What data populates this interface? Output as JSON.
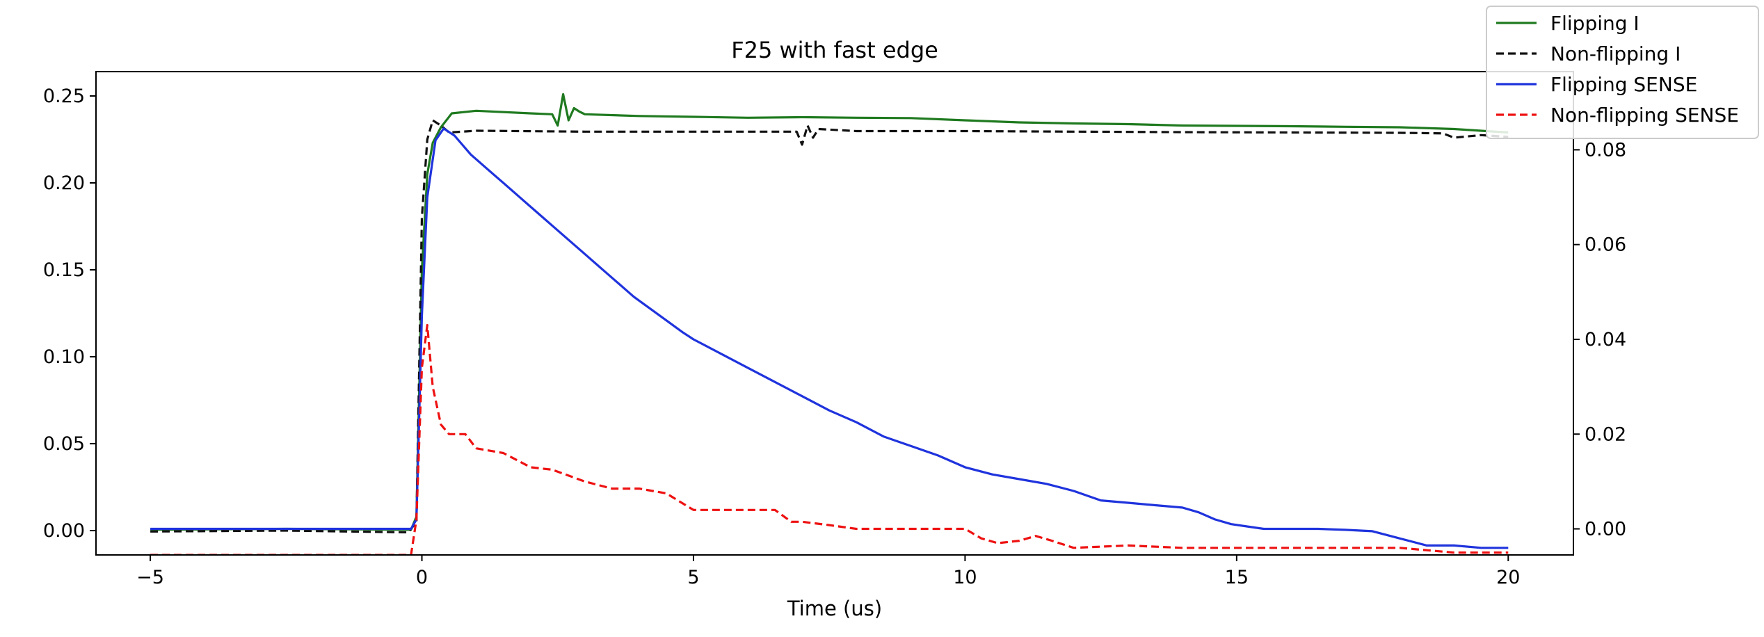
{
  "chart_data": {
    "type": "line",
    "title": "F25 with fast edge",
    "xlabel": "Time (us)",
    "ylabel": "",
    "ylabel_right": "",
    "xlim": [
      -6.0,
      21.2
    ],
    "ylim_left": [
      -0.014,
      0.264
    ],
    "ylim_right": [
      -0.0055,
      0.0965
    ],
    "xticks": [
      -5,
      0,
      5,
      10,
      15,
      20
    ],
    "xtick_labels": [
      "−5",
      "0",
      "5",
      "10",
      "15",
      "20"
    ],
    "yticks_left": [
      0.0,
      0.05,
      0.1,
      0.15,
      0.2,
      0.25
    ],
    "ytick_labels_left": [
      "0.00",
      "0.05",
      "0.10",
      "0.15",
      "0.20",
      "0.25"
    ],
    "yticks_right": [
      0.0,
      0.02,
      0.04,
      0.06,
      0.08
    ],
    "ytick_labels_right": [
      "0.00",
      "0.02",
      "0.04",
      "0.06",
      "0.08"
    ],
    "grid": false,
    "legend_position": "top-right",
    "series": [
      {
        "name": "Flipping I",
        "axis": "left",
        "color": "#1f7a1f",
        "dash": "solid",
        "x": [
          -5,
          -2.5,
          -0.2,
          -0.1,
          0.0,
          0.1,
          0.2,
          0.35,
          0.55,
          1.0,
          2.0,
          2.4,
          2.5,
          2.6,
          2.7,
          2.8,
          2.9,
          3.0,
          4.0,
          5.0,
          6.0,
          7.0,
          8.0,
          9.0,
          10.0,
          11.0,
          12.0,
          13.0,
          14.0,
          15.0,
          16.0,
          17.0,
          18.0,
          19.0,
          20.0
        ],
        "y": [
          0.0005,
          0.001,
          0.0005,
          0.008,
          0.15,
          0.205,
          0.223,
          0.232,
          0.24,
          0.2415,
          0.24,
          0.2395,
          0.233,
          0.251,
          0.236,
          0.243,
          0.241,
          0.2395,
          0.2385,
          0.238,
          0.2375,
          0.2378,
          0.2375,
          0.2373,
          0.236,
          0.2348,
          0.2342,
          0.2338,
          0.233,
          0.2328,
          0.2326,
          0.2323,
          0.232,
          0.231,
          0.229
        ]
      },
      {
        "name": "Non-flipping I",
        "axis": "left",
        "color": "#111111",
        "dash": "dashed",
        "x": [
          -5,
          -2.5,
          -0.25,
          -0.1,
          0.0,
          0.1,
          0.2,
          0.35,
          0.5,
          1.0,
          3.0,
          5.0,
          6.9,
          7.0,
          7.1,
          7.2,
          7.3,
          8.0,
          10.0,
          12.0,
          14.0,
          16.0,
          18.0,
          18.8,
          19.0,
          19.5,
          20.0
        ],
        "y": [
          -0.0005,
          0.0,
          -0.001,
          0.005,
          0.18,
          0.225,
          0.236,
          0.233,
          0.229,
          0.23,
          0.2295,
          0.2295,
          0.2295,
          0.222,
          0.233,
          0.226,
          0.231,
          0.2298,
          0.2298,
          0.2295,
          0.2292,
          0.229,
          0.2288,
          0.2285,
          0.226,
          0.2275,
          0.2265
        ]
      },
      {
        "name": "Flipping SENSE",
        "axis": "right",
        "color": "#1f33dd",
        "dash": "solid",
        "x": [
          -5,
          -1.0,
          -0.2,
          -0.1,
          0.0,
          0.1,
          0.25,
          0.4,
          0.6,
          0.9,
          1.2,
          1.5,
          1.8,
          2.1,
          2.4,
          2.7,
          3.0,
          3.3,
          3.6,
          3.9,
          4.2,
          4.5,
          4.8,
          5.0,
          5.5,
          6.0,
          6.5,
          7.0,
          7.5,
          8.0,
          8.5,
          9.0,
          9.5,
          10.0,
          10.5,
          11.0,
          11.5,
          12.0,
          12.5,
          13.0,
          13.5,
          14.0,
          14.3,
          14.6,
          14.9,
          15.5,
          16.0,
          16.5,
          17.0,
          17.5,
          18.0,
          18.5,
          19.0,
          19.5,
          20.0
        ],
        "y": [
          0.0,
          0.0,
          0.0,
          0.002,
          0.045,
          0.07,
          0.082,
          0.0845,
          0.083,
          0.079,
          0.076,
          0.073,
          0.07,
          0.067,
          0.064,
          0.061,
          0.058,
          0.055,
          0.052,
          0.049,
          0.0465,
          0.044,
          0.0415,
          0.04,
          0.037,
          0.034,
          0.031,
          0.028,
          0.025,
          0.0225,
          0.0195,
          0.0175,
          0.0155,
          0.013,
          0.0115,
          0.0105,
          0.0095,
          0.008,
          0.006,
          0.0055,
          0.005,
          0.0045,
          0.0035,
          0.002,
          0.001,
          0.0,
          0.0,
          0.0,
          -0.0002,
          -0.0005,
          -0.002,
          -0.0035,
          -0.0035,
          -0.004,
          -0.004
        ]
      },
      {
        "name": "Non-flipping SENSE",
        "axis": "right",
        "color": "#ee1111",
        "dash": "dashed",
        "x": [
          -5,
          -1.0,
          -0.2,
          -0.1,
          0.0,
          0.1,
          0.2,
          0.35,
          0.5,
          0.8,
          1.0,
          1.5,
          2.0,
          2.4,
          3.0,
          3.5,
          4.0,
          4.5,
          5.0,
          5.5,
          6.0,
          6.5,
          6.8,
          7.0,
          7.5,
          8.0,
          9.0,
          10.0,
          10.3,
          10.6,
          11.0,
          11.3,
          11.6,
          12.0,
          13.0,
          14.0,
          15.0,
          16.0,
          17.0,
          18.0,
          18.5,
          19.0,
          20.0
        ],
        "y": [
          -0.0055,
          -0.0055,
          -0.0055,
          0.002,
          0.034,
          0.043,
          0.03,
          0.022,
          0.02,
          0.02,
          0.017,
          0.016,
          0.013,
          0.0125,
          0.01,
          0.0085,
          0.0085,
          0.0075,
          0.004,
          0.004,
          0.004,
          0.004,
          0.0015,
          0.0015,
          0.0008,
          0.0,
          0.0,
          0.0,
          -0.002,
          -0.003,
          -0.0025,
          -0.0015,
          -0.0025,
          -0.004,
          -0.0035,
          -0.004,
          -0.004,
          -0.004,
          -0.004,
          -0.004,
          -0.0045,
          -0.005,
          -0.005
        ]
      }
    ]
  }
}
